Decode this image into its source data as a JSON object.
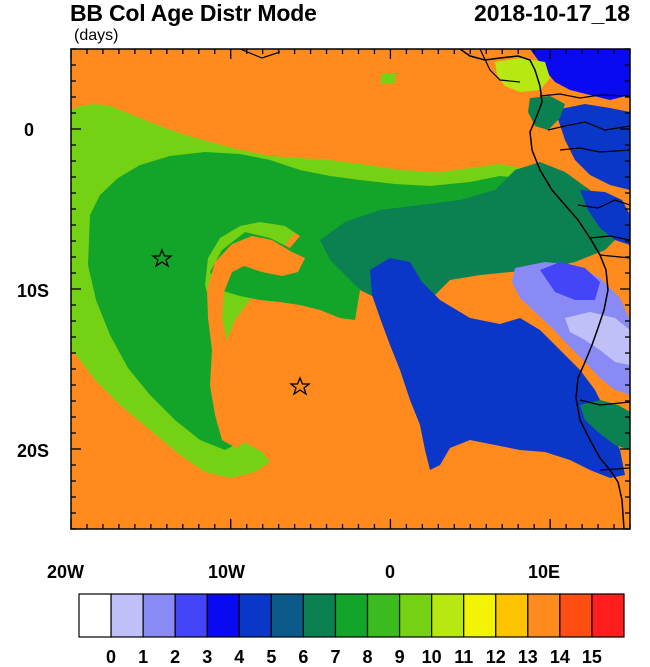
{
  "header": {
    "title": "BB Col Age Distr Mode",
    "units": "(days)",
    "date": "2018-10-17_18"
  },
  "map_data": {
    "type": "filled-contour-map",
    "lon_range": [
      -20,
      15
    ],
    "lat_range": [
      -25,
      5
    ],
    "x_ticks": [
      "20W",
      "10W",
      "0",
      "10E"
    ],
    "y_ticks": [
      "0",
      "10S",
      "20S"
    ],
    "markers": [
      {
        "name": "star",
        "lon": -14.3,
        "lat": -8.0
      },
      {
        "name": "star",
        "lon": -5.7,
        "lat": -16.0
      }
    ]
  },
  "colorbar": {
    "labels": [
      "0",
      "1",
      "2",
      "3",
      "4",
      "5",
      "6",
      "7",
      "8",
      "9",
      "10",
      "11",
      "12",
      "13",
      "14",
      "15"
    ],
    "colors": [
      "#ffffff",
      "#c0c0f8",
      "#8a8af5",
      "#4444f8",
      "#0a0af0",
      "#0a37c7",
      "#0b5a8a",
      "#0b8050",
      "#12a52a",
      "#3bbb1e",
      "#74d114",
      "#b8e812",
      "#f3f305",
      "#fdc200",
      "#ff8a1e",
      "#ff4e12",
      "#ff1e1e"
    ]
  }
}
